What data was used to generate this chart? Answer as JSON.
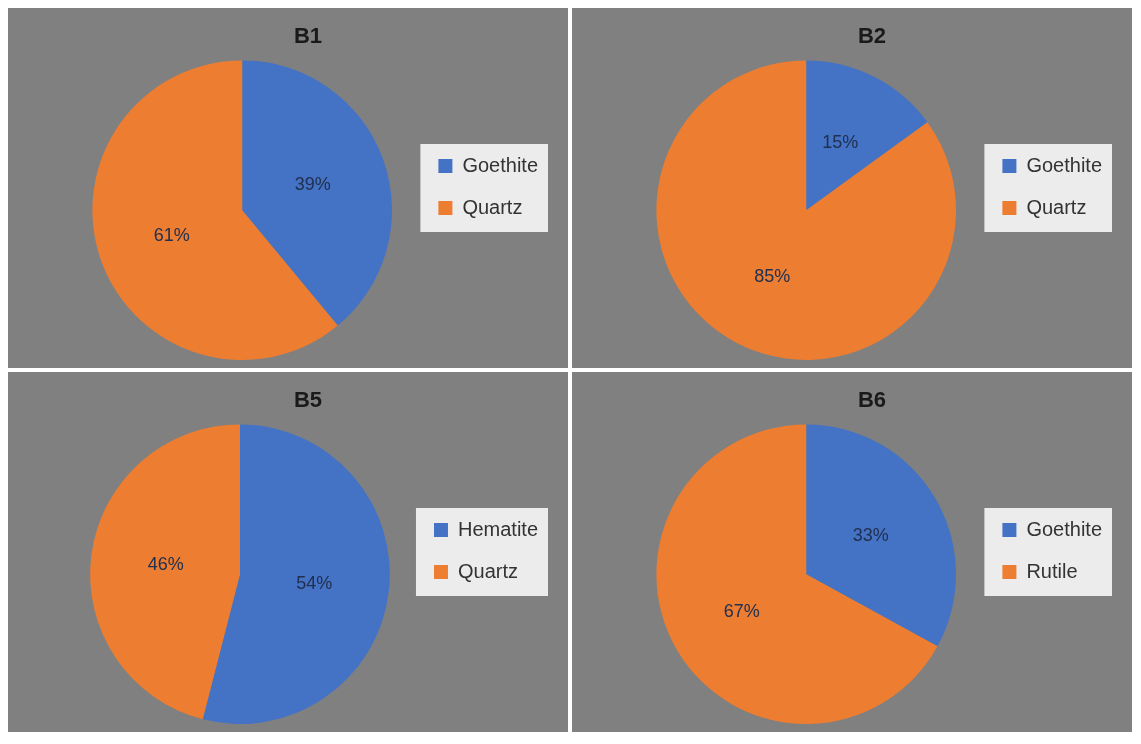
{
  "chart_data": [
    {
      "type": "pie",
      "title": "B1",
      "categories": [
        "Goethite",
        "Quartz"
      ],
      "values": [
        39,
        61
      ],
      "colors": [
        "#4472c4",
        "#ed7d31"
      ],
      "value_labels": [
        "39%",
        "61%"
      ],
      "legend": "right"
    },
    {
      "type": "pie",
      "title": "B2",
      "categories": [
        "Goethite",
        "Quartz"
      ],
      "values": [
        15,
        85
      ],
      "colors": [
        "#4472c4",
        "#ed7d31"
      ],
      "value_labels": [
        "15%",
        "85%"
      ],
      "legend": "right"
    },
    {
      "type": "pie",
      "title": "B5",
      "categories": [
        "Hematite",
        "Quartz"
      ],
      "values": [
        54,
        46
      ],
      "colors": [
        "#4472c4",
        "#ed7d31"
      ],
      "value_labels": [
        "54%",
        "46%"
      ],
      "legend": "right"
    },
    {
      "type": "pie",
      "title": "B6",
      "categories": [
        "Goethite",
        "Rutile"
      ],
      "values": [
        33,
        67
      ],
      "colors": [
        "#4472c4",
        "#ed7d31"
      ],
      "value_labels": [
        "33%",
        "67%"
      ],
      "legend": "right"
    }
  ]
}
